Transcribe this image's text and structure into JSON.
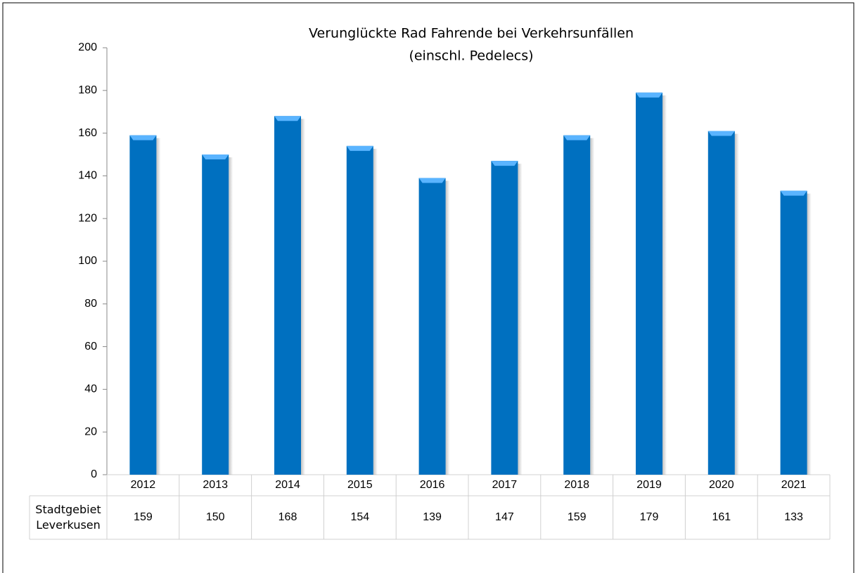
{
  "chart_data": {
    "type": "bar",
    "title": "Verunglückte Rad Fahrende bei Verkehrsunfällen",
    "subtitle": "(einschl. Pedelecs)",
    "categories": [
      "2012",
      "2013",
      "2014",
      "2015",
      "2016",
      "2017",
      "2018",
      "2019",
      "2020",
      "2021"
    ],
    "series": [
      {
        "name": "Stadtgebiet Leverkusen",
        "color": "#0070c0",
        "values": [
          159,
          150,
          168,
          154,
          139,
          147,
          159,
          179,
          161,
          133
        ]
      }
    ],
    "ylim": [
      0,
      200
    ],
    "yticks": [
      0,
      20,
      40,
      60,
      80,
      100,
      120,
      140,
      160,
      180,
      200
    ],
    "grid": false
  }
}
